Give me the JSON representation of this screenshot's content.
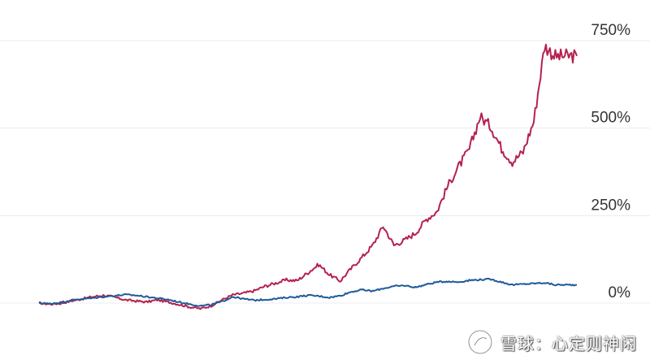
{
  "chart_data": {
    "type": "line",
    "title": "",
    "xlabel": "",
    "ylabel": "",
    "ylim": [
      -30,
      830
    ],
    "yticks": [
      {
        "value": 0,
        "label": "0%"
      },
      {
        "value": 250,
        "label": "250%"
      },
      {
        "value": 500,
        "label": "500%"
      },
      {
        "value": 750,
        "label": "750%"
      }
    ],
    "grid": true,
    "legend": "none",
    "x": [
      0,
      2,
      4,
      6,
      8,
      10,
      12,
      14,
      16,
      18,
      20,
      22,
      24,
      26,
      28,
      30,
      32,
      34,
      36,
      38,
      40,
      42,
      44,
      46,
      48,
      50,
      52,
      54,
      56,
      58,
      60,
      62,
      64,
      66,
      68,
      70,
      72,
      74,
      76,
      78,
      80,
      82,
      84,
      86,
      88,
      90,
      92,
      94,
      96,
      98,
      100
    ],
    "series": [
      {
        "color": "#b5214f",
        "values": [
          0,
          -3,
          -1,
          6,
          12,
          18,
          22,
          17,
          9,
          6,
          3,
          9,
          3,
          -4,
          -11,
          -16,
          -8,
          9,
          23,
          28,
          35,
          48,
          57,
          66,
          64,
          87,
          110,
          81,
          63,
          98,
          130,
          164,
          220,
          165,
          180,
          200,
          239,
          262,
          335,
          390,
          439,
          533,
          505,
          442,
          403,
          432,
          520,
          735,
          705,
          706,
          706
        ]
      },
      {
        "color": "#1f5b99",
        "values": [
          0,
          -2,
          2,
          8,
          12,
          14,
          18,
          21,
          24,
          22,
          18,
          14,
          10,
          3,
          -3,
          -8,
          -5,
          4,
          18,
          12,
          8,
          10,
          12,
          16,
          18,
          22,
          20,
          16,
          21,
          32,
          38,
          34,
          42,
          48,
          50,
          45,
          53,
          60,
          62,
          60,
          65,
          67,
          68,
          60,
          52,
          54,
          56,
          58,
          52,
          52,
          52
        ]
      }
    ]
  },
  "watermark": {
    "text": "雪球：心定则神闲",
    "icon": "snowball-logo-icon"
  }
}
